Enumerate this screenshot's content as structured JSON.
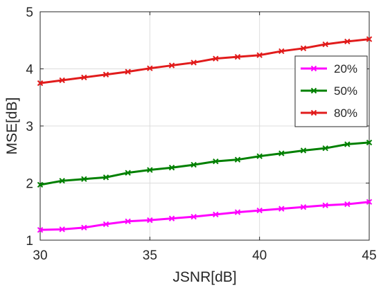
{
  "chart_data": {
    "type": "line",
    "title": "",
    "xlabel": "JSNR[dB]",
    "ylabel": "MSE[dB]",
    "xlim": [
      30,
      45
    ],
    "ylim": [
      1,
      5
    ],
    "x_ticks": [
      30,
      35,
      40,
      45
    ],
    "y_ticks": [
      1,
      2,
      3,
      4,
      5
    ],
    "grid": true,
    "legend_position": "upper-right",
    "x": [
      30,
      31,
      32,
      33,
      34,
      35,
      36,
      37,
      38,
      39,
      40,
      41,
      42,
      43,
      44,
      45
    ],
    "series": [
      {
        "name": "20%",
        "color": "#ff00ff",
        "marker": "x",
        "values": [
          1.18,
          1.19,
          1.22,
          1.28,
          1.33,
          1.35,
          1.38,
          1.41,
          1.45,
          1.49,
          1.52,
          1.55,
          1.58,
          1.61,
          1.63,
          1.67
        ]
      },
      {
        "name": "50%",
        "color": "#008000",
        "marker": "x",
        "values": [
          1.97,
          2.04,
          2.07,
          2.1,
          2.18,
          2.23,
          2.27,
          2.32,
          2.38,
          2.41,
          2.47,
          2.52,
          2.57,
          2.61,
          2.68,
          2.71
        ]
      },
      {
        "name": "80%",
        "color": "#e11b1b",
        "marker": "x",
        "values": [
          3.75,
          3.8,
          3.85,
          3.9,
          3.95,
          4.01,
          4.06,
          4.11,
          4.18,
          4.21,
          4.24,
          4.31,
          4.36,
          4.43,
          4.48,
          4.52
        ]
      }
    ]
  }
}
